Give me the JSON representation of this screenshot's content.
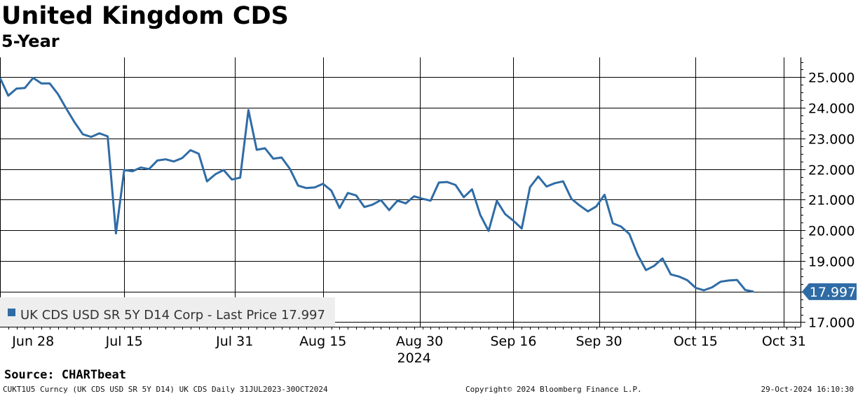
{
  "header": {
    "title": "United Kingdom CDS",
    "subtitle": "5-Year"
  },
  "chart_data": {
    "type": "line",
    "series": [
      {
        "name": "UK CDS USD SR 5Y D14 Corp - Last Price 17.997",
        "color": "#2f6ca6",
        "last_value_label": "17.997",
        "points": [
          [
            0,
            24.98
          ],
          [
            3,
            24.4
          ],
          [
            6,
            24.63
          ],
          [
            9,
            24.65
          ],
          [
            12,
            24.98
          ],
          [
            15,
            24.8
          ],
          [
            18,
            24.8
          ],
          [
            21,
            24.45
          ],
          [
            24,
            23.98
          ],
          [
            27,
            23.53
          ],
          [
            30,
            23.14
          ],
          [
            33,
            23.05
          ],
          [
            36,
            23.17
          ],
          [
            39,
            23.07
          ],
          [
            42,
            19.9
          ],
          [
            45,
            21.97
          ],
          [
            48,
            21.93
          ],
          [
            51,
            22.05
          ],
          [
            54,
            22.0
          ],
          [
            57,
            22.28
          ],
          [
            60,
            22.32
          ],
          [
            63,
            22.25
          ],
          [
            66,
            22.36
          ],
          [
            69,
            22.62
          ],
          [
            72,
            22.5
          ],
          [
            75,
            21.6
          ],
          [
            78,
            21.83
          ],
          [
            81,
            21.97
          ],
          [
            84,
            21.66
          ],
          [
            87,
            21.72
          ],
          [
            90,
            23.93
          ],
          [
            93,
            22.63
          ],
          [
            96,
            22.68
          ],
          [
            99,
            22.34
          ],
          [
            102,
            22.38
          ],
          [
            105,
            22.01
          ],
          [
            108,
            21.46
          ],
          [
            111,
            21.38
          ],
          [
            114,
            21.4
          ],
          [
            117,
            21.52
          ],
          [
            120,
            21.3
          ],
          [
            123,
            20.73
          ],
          [
            126,
            21.22
          ],
          [
            129,
            21.14
          ],
          [
            132,
            20.76
          ],
          [
            135,
            20.84
          ],
          [
            138,
            20.99
          ],
          [
            141,
            20.66
          ],
          [
            144,
            20.97
          ],
          [
            147,
            20.88
          ],
          [
            150,
            21.11
          ],
          [
            153,
            21.03
          ],
          [
            156,
            20.97
          ],
          [
            159,
            21.56
          ],
          [
            162,
            21.58
          ],
          [
            165,
            21.48
          ],
          [
            168,
            21.08
          ],
          [
            171,
            21.34
          ],
          [
            174,
            20.5
          ],
          [
            177,
            19.98
          ],
          [
            180,
            20.96
          ],
          [
            183,
            20.53
          ],
          [
            186,
            20.31
          ],
          [
            189,
            20.06
          ],
          [
            192,
            21.41
          ],
          [
            195,
            21.76
          ],
          [
            198,
            21.43
          ],
          [
            201,
            21.54
          ],
          [
            204,
            21.6
          ],
          [
            207,
            21.03
          ],
          [
            210,
            20.81
          ],
          [
            213,
            20.62
          ],
          [
            216,
            20.78
          ],
          [
            219,
            21.16
          ],
          [
            222,
            20.23
          ],
          [
            225,
            20.12
          ],
          [
            228,
            19.88
          ],
          [
            231,
            19.2
          ],
          [
            234,
            18.7
          ],
          [
            237,
            18.84
          ],
          [
            240,
            19.08
          ],
          [
            243,
            18.56
          ],
          [
            246,
            18.49
          ],
          [
            249,
            18.37
          ],
          [
            252,
            18.12
          ],
          [
            255,
            18.04
          ],
          [
            258,
            18.14
          ],
          [
            261,
            18.32
          ],
          [
            264,
            18.36
          ],
          [
            267,
            18.38
          ],
          [
            270,
            18.05
          ],
          [
            273,
            17.997
          ]
        ]
      }
    ],
    "x_tick_labels": [
      {
        "label": "Jun 28",
        "x": 12
      },
      {
        "label": "Jul 15",
        "x": 45
      },
      {
        "label": "Jul 31",
        "x": 85
      },
      {
        "label": "Aug 15",
        "x": 117
      },
      {
        "label": "Aug 30",
        "x": 152
      },
      {
        "label": "Sep 16",
        "x": 186
      },
      {
        "label": "Sep 30",
        "x": 217
      },
      {
        "label": "Oct 15",
        "x": 252
      },
      {
        "label": "Oct 31",
        "x": 284
      }
    ],
    "x_year_label": "2024",
    "x_vertical_gridlines": [
      0,
      45,
      85,
      117,
      152,
      186,
      217,
      252,
      284
    ],
    "y_ticks": [
      "17.000",
      "18.000",
      "19.000",
      "20.000",
      "21.000",
      "22.000",
      "23.000",
      "24.000",
      "25.000"
    ],
    "ylim": [
      16.85,
      25.65
    ],
    "xlim": [
      0,
      290
    ],
    "grid": true,
    "legend": {
      "placement": "bottom-left",
      "label": "UK CDS USD SR 5Y D14 Corp - Last Price 17.997"
    }
  },
  "footer": {
    "source": "Source: CHARTbeat",
    "left": "CUKT1U5 Curncy (UK CDS USD SR 5Y D14) UK CDS  Daily 31JUL2023-30OCT2024",
    "center": "Copyright© 2024 Bloomberg Finance L.P.",
    "right": "29-Oct-2024 16:10:30"
  }
}
